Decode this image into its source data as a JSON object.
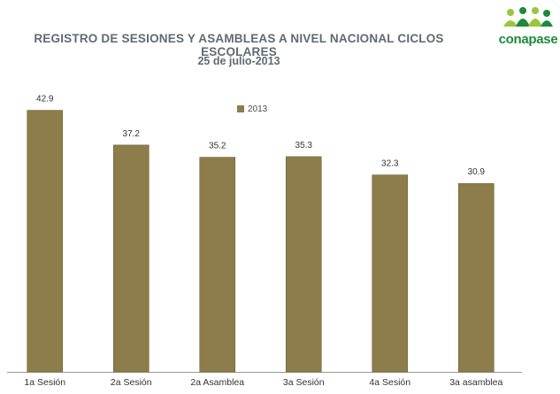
{
  "header": {
    "title": "REGISTRO DE SESIONES Y ASAMBLEAS A NIVEL NACIONAL CICLOS ESCOLARES",
    "subtitle": "25 de julio-2013"
  },
  "logo": {
    "text": "conapase",
    "color": "#1e8a3c"
  },
  "colors": {
    "bar": "#8c7d4a",
    "bar_edge": "#6f6238",
    "axis": "#9a9a9a"
  },
  "chart_data": {
    "type": "bar",
    "title": "REGISTRO DE SESIONES Y ASAMBLEAS A NIVEL NACIONAL CICLOS ESCOLARES",
    "subtitle": "25 de julio-2013",
    "categories": [
      "1a Sesión",
      "2a Sesión",
      "2a Asamblea",
      "3a Sesión",
      "4a Sesión",
      "3a asamblea"
    ],
    "series": [
      {
        "name": "2013",
        "values": [
          42.9,
          37.2,
          35.2,
          35.3,
          32.3,
          30.9
        ]
      }
    ],
    "data_labels": [
      "42.9",
      "37.2",
      "35.2",
      "35.3",
      "32.3",
      "30.9"
    ],
    "ylim": [
      0,
      44
    ],
    "grid": false,
    "legend": "top-center"
  }
}
